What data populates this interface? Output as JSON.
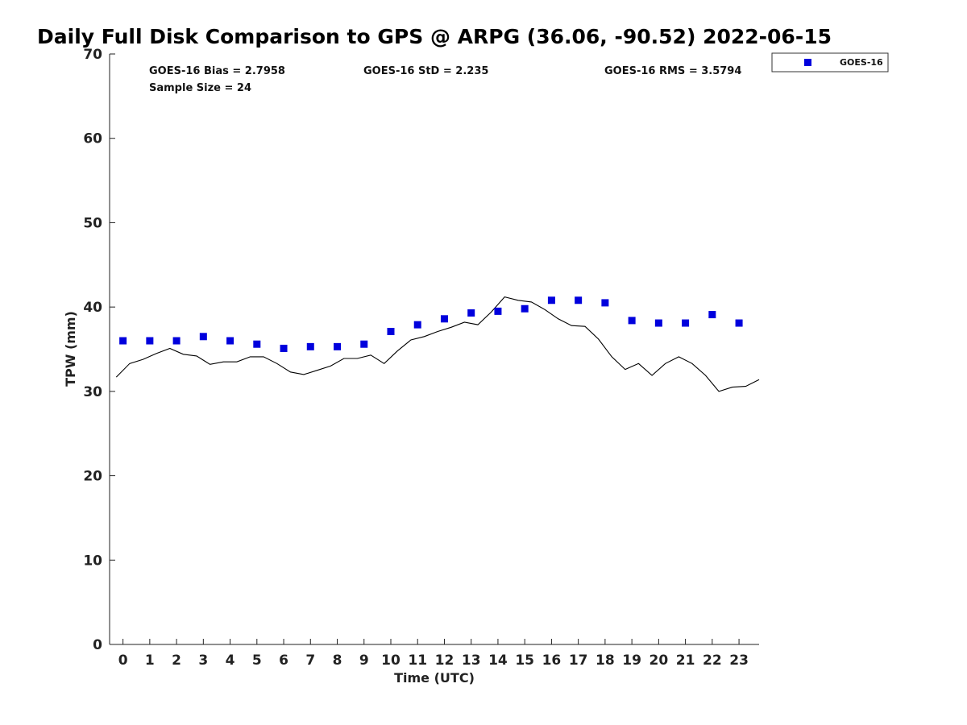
{
  "chart_data": {
    "type": "scatter",
    "title": "Daily Full Disk Comparison to GPS @ ARPG (36.06, -90.52) 2022-06-15",
    "xlabel": "Time (UTC)",
    "ylabel": "TPW (mm)",
    "xlim": [
      -0.5,
      23.75
    ],
    "ylim": [
      0,
      70
    ],
    "x_ticks": [
      "0",
      "1",
      "2",
      "3",
      "4",
      "5",
      "6",
      "7",
      "8",
      "9",
      "10",
      "11",
      "12",
      "13",
      "14",
      "15",
      "16",
      "17",
      "18",
      "19",
      "20",
      "21",
      "22",
      "23"
    ],
    "y_ticks": [
      "0",
      "10",
      "20",
      "30",
      "40",
      "50",
      "60",
      "70"
    ],
    "grid": false,
    "legend": {
      "position": "top-right",
      "entries": [
        "GOES-16"
      ]
    },
    "stats": {
      "bias": "GOES-16 Bias = 2.7958",
      "std": "GOES-16 StD = 2.235",
      "rms": "GOES-16 RMS = 3.5794",
      "sample": "Sample Size = 24"
    },
    "series": [
      {
        "name": "GOES-16",
        "kind": "scatter",
        "marker": "square",
        "color": "#0000dd",
        "x": [
          0,
          1,
          2,
          3,
          4,
          5,
          6,
          7,
          8,
          9,
          10,
          11,
          12,
          13,
          14,
          15,
          16,
          17,
          18,
          19,
          20,
          21,
          22,
          23
        ],
        "y": [
          36.0,
          36.0,
          36.0,
          36.5,
          36.0,
          35.6,
          35.1,
          35.3,
          35.3,
          35.6,
          37.1,
          37.9,
          38.6,
          39.3,
          39.5,
          39.8,
          40.8,
          40.8,
          40.5,
          38.4,
          38.1,
          38.1,
          39.1,
          38.1
        ]
      },
      {
        "kind": "line",
        "color": "#000000",
        "x": [
          -0.25,
          0.25,
          0.75,
          1.25,
          1.75,
          2.25,
          2.75,
          3.25,
          3.75,
          4.25,
          4.75,
          5.25,
          5.75,
          6.25,
          6.75,
          7.25,
          7.75,
          8.25,
          8.75,
          9.25,
          9.75,
          10.25,
          10.75,
          11.25,
          11.75,
          12.25,
          12.75,
          13.25,
          13.75,
          14.25,
          14.75,
          15.25,
          15.75,
          16.25,
          16.75,
          17.25,
          17.75,
          18.25,
          18.75,
          19.25,
          19.75,
          20.25,
          20.75,
          21.25,
          21.75,
          22.25,
          22.75,
          23.25,
          23.75
        ],
        "y": [
          31.7,
          33.3,
          33.8,
          34.5,
          35.1,
          34.4,
          34.2,
          33.2,
          33.5,
          33.5,
          34.1,
          34.1,
          33.3,
          32.3,
          32.0,
          32.5,
          33.0,
          33.9,
          33.9,
          34.3,
          33.3,
          34.8,
          36.1,
          36.5,
          37.1,
          37.6,
          38.2,
          37.9,
          39.4,
          41.2,
          40.8,
          40.6,
          39.7,
          38.6,
          37.8,
          37.7,
          36.2,
          34.1,
          32.6,
          33.3,
          31.9,
          33.3,
          34.1,
          33.3,
          31.9,
          30.0,
          30.5,
          30.6,
          31.4
        ]
      }
    ]
  }
}
